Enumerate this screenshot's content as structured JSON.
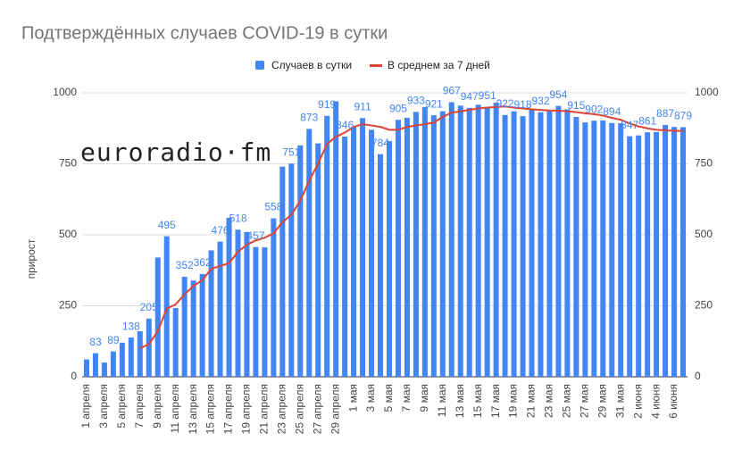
{
  "chart_data": {
    "type": "bar",
    "title": "Подтверждённых случаев COVID-19 в сутки",
    "watermark": "euroradio·fm",
    "y_label": "прирост",
    "categories": [
      "1 апреля",
      null,
      "3 апреля",
      null,
      "5 апреля",
      null,
      "7 апреля",
      null,
      "9 апреля",
      null,
      "11 апреля",
      null,
      "13 апреля",
      null,
      "15 апреля",
      null,
      "17 апреля",
      null,
      "19 апреля",
      null,
      "21 апреля",
      null,
      "23 апреля",
      null,
      "25 апреля",
      null,
      "27 апреля",
      null,
      "29 апреля",
      null,
      "1 мая",
      null,
      "3 мая",
      null,
      "5 мая",
      null,
      "7 мая",
      null,
      "9 мая",
      null,
      "11 мая",
      null,
      "13 мая",
      null,
      "15 мая",
      null,
      "17 мая",
      null,
      "19 мая",
      null,
      "21 мая",
      null,
      "23 мая",
      null,
      "25 мая",
      null,
      "27 мая",
      null,
      "29 мая",
      null,
      "31 мая",
      null,
      "2 июня",
      null,
      "4 июня",
      null,
      "6 июня",
      null
    ],
    "series": [
      {
        "name": "Случаев в сутки",
        "color": "#4285f4",
        "kind": "bar",
        "values": [
          61,
          83,
          50,
          89,
          120,
          138,
          160,
          205,
          420,
          495,
          242,
          352,
          339,
          362,
          445,
          476,
          560,
          518,
          510,
          457,
          456,
          558,
          740,
          751,
          815,
          873,
          822,
          919,
          970,
          846,
          881,
          911,
          870,
          784,
          830,
          905,
          912,
          933,
          950,
          921,
          935,
          967,
          955,
          947,
          958,
          951,
          965,
          922,
          935,
          918,
          940,
          932,
          935,
          954,
          942,
          915,
          896,
          902,
          903,
          894,
          893,
          847,
          850,
          861,
          862,
          887,
          880,
          879
        ],
        "value_labels": [
          null,
          "83",
          null,
          "89",
          null,
          "138",
          null,
          "205",
          null,
          "495",
          null,
          "352",
          null,
          "362",
          null,
          "476",
          null,
          "518",
          null,
          "457",
          null,
          "558",
          null,
          "751",
          null,
          "873",
          null,
          "919",
          null,
          "846",
          null,
          "911",
          null,
          "784",
          null,
          "905",
          null,
          "933",
          null,
          "921",
          null,
          "967",
          null,
          "947",
          null,
          "951",
          null,
          "922",
          null,
          "918",
          null,
          "932",
          null,
          "954",
          null,
          "915",
          null,
          "902",
          null,
          "894",
          null,
          "847",
          null,
          "861",
          null,
          "887",
          null,
          "879"
        ]
      },
      {
        "name": "В среднем за 7 дней",
        "color": "#db4437",
        "kind": "line",
        "values": [
          null,
          null,
          null,
          null,
          null,
          null,
          100,
          115,
          160,
          240,
          255,
          290,
          320,
          340,
          380,
          390,
          400,
          440,
          465,
          480,
          490,
          505,
          545,
          570,
          620,
          690,
          750,
          820,
          845,
          860,
          880,
          890,
          885,
          880,
          870,
          870,
          880,
          885,
          890,
          895,
          915,
          930,
          935,
          940,
          945,
          948,
          950,
          952,
          948,
          945,
          942,
          940,
          938,
          937,
          935,
          932,
          928,
          925,
          920,
          912,
          905,
          892,
          882,
          875,
          870,
          868,
          866,
          866
        ]
      }
    ],
    "ylim": [
      0,
      1000
    ],
    "yticks": [
      0,
      250,
      500,
      750,
      1000
    ],
    "y2lim": [
      0,
      1000
    ],
    "y2ticks": [
      0,
      250,
      500,
      750,
      1000
    ],
    "grid": true,
    "legend": "top"
  }
}
